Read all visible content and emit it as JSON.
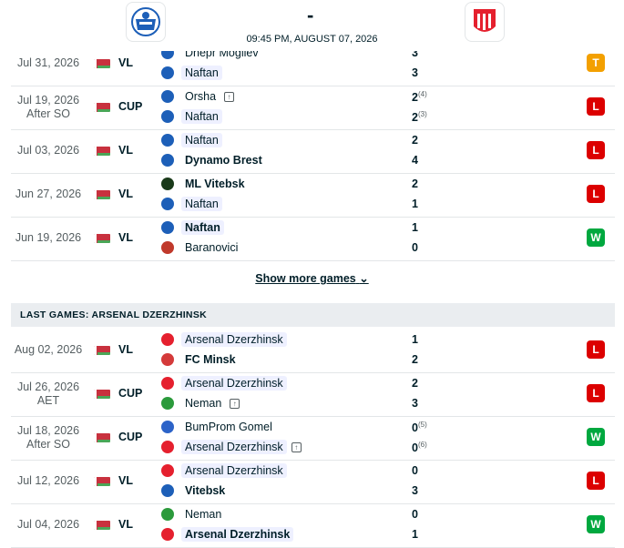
{
  "header": {
    "score_dash": "-",
    "match_time": "09:45 PM, AUGUST 07, 2026"
  },
  "naftan_games": [
    {
      "date": "Jul 31, 2026",
      "sub": "",
      "comp": "VL",
      "home": "Dnepr Mogilev",
      "away": "Naftan",
      "home_score": "3",
      "away_score": "3",
      "home_pen": "",
      "away_pen": "",
      "result": "T",
      "home_bold": false,
      "away_bold": false
    },
    {
      "date": "Jul 19, 2026",
      "sub": "After SO",
      "comp": "CUP",
      "home": "Orsha",
      "away": "Naftan",
      "home_score": "2",
      "away_score": "2",
      "home_pen": "(4)",
      "away_pen": "(3)",
      "result": "L"
    },
    {
      "date": "Jul 03, 2026",
      "sub": "",
      "comp": "VL",
      "home": "Naftan",
      "away": "Dynamo Brest",
      "home_score": "2",
      "away_score": "4",
      "home_pen": "",
      "away_pen": "",
      "result": "L"
    },
    {
      "date": "Jun 27, 2026",
      "sub": "",
      "comp": "VL",
      "home": "ML Vitebsk",
      "away": "Naftan",
      "home_score": "2",
      "away_score": "1",
      "home_pen": "",
      "away_pen": "",
      "result": "L"
    },
    {
      "date": "Jun 19, 2026",
      "sub": "",
      "comp": "VL",
      "home": "Naftan",
      "away": "Baranovici",
      "home_score": "1",
      "away_score": "0",
      "home_pen": "",
      "away_pen": "",
      "result": "W"
    }
  ],
  "show_more": "Show more games",
  "section_title": "LAST GAMES: ARSENAL DZERZHINSK",
  "arsenal_games": [
    {
      "date": "Aug 02, 2026",
      "sub": "",
      "comp": "VL",
      "home": "Arsenal Dzerzhinsk",
      "away": "FC Minsk",
      "home_score": "1",
      "away_score": "2",
      "home_pen": "",
      "away_pen": "",
      "result": "L"
    },
    {
      "date": "Jul 26, 2026",
      "sub": "AET",
      "comp": "CUP",
      "home": "Arsenal Dzerzhinsk",
      "away": "Neman",
      "home_score": "2",
      "away_score": "3",
      "home_pen": "",
      "away_pen": "",
      "result": "L"
    },
    {
      "date": "Jul 18, 2026",
      "sub": "After SO",
      "comp": "CUP",
      "home": "BumProm Gomel",
      "away": "Arsenal Dzerzhinsk",
      "home_score": "0",
      "away_score": "0",
      "home_pen": "(5)",
      "away_pen": "(6)",
      "result": "W"
    },
    {
      "date": "Jul 12, 2026",
      "sub": "",
      "comp": "VL",
      "home": "Arsenal Dzerzhinsk",
      "away": "Vitebsk",
      "home_score": "0",
      "away_score": "3",
      "home_pen": "",
      "away_pen": "",
      "result": "L"
    },
    {
      "date": "Jul 04, 2026",
      "sub": "",
      "comp": "VL",
      "home": "Neman",
      "away": "Arsenal Dzerzhinsk",
      "home_score": "0",
      "away_score": "1",
      "home_pen": "",
      "away_pen": "",
      "result": "W"
    }
  ],
  "colors": {
    "loss": "#dc0000",
    "win": "#00a83f",
    "draw": "#f3a000"
  }
}
